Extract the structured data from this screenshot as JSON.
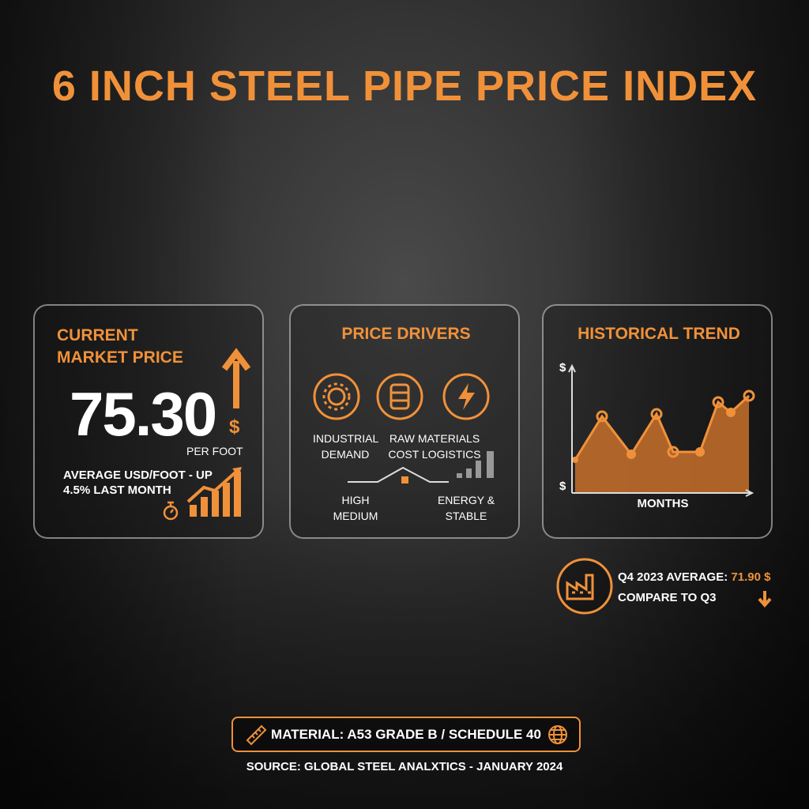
{
  "title": "6 INCH STEEL PIPE PRICE INDEX",
  "market_price": {
    "heading": "CURRENT MARKET PRICE",
    "price": "75.30",
    "currency": "$",
    "unit": "PER FOOT",
    "note": "AVERAGE USD/FOOT - UP 4.5% LAST MONTH"
  },
  "price_drivers": {
    "heading": "PRICE DRIVERS",
    "labels": [
      "INDUSTRIAL DEMAND",
      "RAW MATERIALS COST LOGISTICS",
      "HIGH MEDIUM",
      "ENERGY & STABLE"
    ]
  },
  "historical_trend": {
    "heading": "HISTORICAL TREND",
    "y_label_top": "$",
    "y_label_bottom": "$",
    "x_label": "MONTHS"
  },
  "q4": {
    "label": "Q4 2023 AVERAGE:",
    "value": "71.90 $",
    "compare": "COMPARE TO Q3"
  },
  "material": "MATERIAL: A53 GRADE B / SCHEDULE 40",
  "source": "SOURCE: GLOBAL STEEL ANALXTICS - JANUARY 2024"
}
